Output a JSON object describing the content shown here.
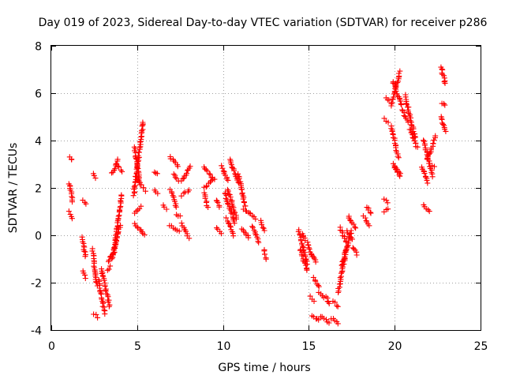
{
  "chart_data": {
    "type": "scatter",
    "title": "Day 019 of 2023, Sidereal Day-to-day VTEC variation (SDTVAR) for receiver p286",
    "xlabel": "GPS time / hours",
    "ylabel": "SDTVAR / TECUs",
    "xlim": [
      0,
      25
    ],
    "ylim": [
      -4,
      8
    ],
    "xticks": [
      "0",
      "5",
      "10",
      "15",
      "20",
      "25"
    ],
    "yticks": [
      "-4",
      "-2",
      "0",
      "2",
      "4",
      "6",
      "8"
    ],
    "grid": true,
    "marker": "plus",
    "color": "#ff0000",
    "tracks": [
      {
        "x": [
          1.1,
          1.2
        ],
        "y": [
          3.3,
          3.2
        ]
      },
      {
        "x": [
          1.05,
          1.25
        ],
        "y": [
          2.2,
          1.4
        ]
      },
      {
        "x": [
          1.05,
          1.2
        ],
        "y": [
          1.0,
          0.7
        ]
      },
      {
        "x": [
          1.85,
          2.05
        ],
        "y": [
          1.5,
          1.3
        ]
      },
      {
        "x": [
          1.8,
          2.0
        ],
        "y": [
          -0.1,
          -0.9
        ]
      },
      {
        "x": [
          1.85,
          2.0
        ],
        "y": [
          -1.5,
          -1.8
        ]
      },
      {
        "x": [
          2.4,
          2.65
        ],
        "y": [
          -0.6,
          -2.1
        ]
      },
      {
        "x": [
          2.45,
          2.6
        ],
        "y": [
          2.6,
          2.4
        ]
      },
      {
        "x": [
          2.45,
          2.7
        ],
        "y": [
          -3.3,
          -3.45
        ]
      },
      {
        "x": [
          2.75,
          3.1
        ],
        "y": [
          -1.9,
          -3.3
        ]
      },
      {
        "x": [
          2.9,
          3.4
        ],
        "y": [
          -1.4,
          -3.0
        ]
      },
      {
        "x": [
          3.25,
          3.45
        ],
        "y": [
          -1.5,
          -1.3
        ]
      },
      {
        "x": [
          3.3,
          3.55
        ],
        "y": [
          -1.1,
          -0.8
        ]
      },
      {
        "x": [
          3.55,
          3.9
        ],
        "y": [
          2.6,
          3.2
        ]
      },
      {
        "x": [
          3.8,
          4.15
        ],
        "y": [
          3.0,
          2.7
        ]
      },
      {
        "x": [
          3.6,
          4.1
        ],
        "y": [
          -0.9,
          1.7
        ]
      },
      {
        "x": [
          3.55,
          4.0
        ],
        "y": [
          -1.0,
          0.4
        ]
      },
      {
        "x": [
          4.8,
          5.35
        ],
        "y": [
          1.7,
          4.8
        ]
      },
      {
        "x": [
          4.85,
          5.15
        ],
        "y": [
          3.7,
          2.2
        ]
      },
      {
        "x": [
          4.9,
          5.45
        ],
        "y": [
          2.5,
          1.9
        ]
      },
      {
        "x": [
          4.85,
          5.2
        ],
        "y": [
          0.9,
          1.2
        ]
      },
      {
        "x": [
          4.85,
          5.4
        ],
        "y": [
          0.5,
          0.0
        ]
      },
      {
        "x": [
          6.0,
          6.2
        ],
        "y": [
          2.7,
          2.6
        ]
      },
      {
        "x": [
          6.0,
          6.2
        ],
        "y": [
          1.9,
          1.8
        ]
      },
      {
        "x": [
          6.5,
          6.7
        ],
        "y": [
          1.3,
          1.1
        ]
      },
      {
        "x": [
          6.9,
          7.4
        ],
        "y": [
          3.3,
          2.9
        ]
      },
      {
        "x": [
          7.1,
          7.4
        ],
        "y": [
          2.6,
          2.3
        ]
      },
      {
        "x": [
          6.95,
          7.3
        ],
        "y": [
          1.9,
          1.2
        ]
      },
      {
        "x": [
          7.6,
          8.1
        ],
        "y": [
          2.3,
          2.9
        ]
      },
      {
        "x": [
          7.6,
          8.05
        ],
        "y": [
          1.7,
          1.9
        ]
      },
      {
        "x": [
          6.9,
          7.45
        ],
        "y": [
          0.4,
          0.2
        ]
      },
      {
        "x": [
          7.3,
          7.5
        ],
        "y": [
          0.9,
          0.8
        ]
      },
      {
        "x": [
          7.6,
          8.0
        ],
        "y": [
          0.5,
          -0.1
        ]
      },
      {
        "x": [
          8.9,
          9.4
        ],
        "y": [
          2.9,
          2.4
        ]
      },
      {
        "x": [
          8.9,
          9.5
        ],
        "y": [
          2.0,
          2.4
        ]
      },
      {
        "x": [
          8.9,
          9.1
        ],
        "y": [
          1.8,
          1.2
        ]
      },
      {
        "x": [
          9.9,
          10.3
        ],
        "y": [
          2.9,
          2.3
        ]
      },
      {
        "x": [
          10.4,
          10.9
        ],
        "y": [
          3.2,
          2.2
        ]
      },
      {
        "x": [
          9.6,
          9.8
        ],
        "y": [
          1.5,
          1.2
        ]
      },
      {
        "x": [
          9.6,
          9.9
        ],
        "y": [
          0.3,
          0.1
        ]
      },
      {
        "x": [
          10.1,
          10.7
        ],
        "y": [
          1.8,
          0.5
        ]
      },
      {
        "x": [
          10.3,
          10.8
        ],
        "y": [
          1.9,
          0.7
        ]
      },
      {
        "x": [
          10.9,
          11.3
        ],
        "y": [
          2.6,
          1.2
        ]
      },
      {
        "x": [
          10.2,
          10.6
        ],
        "y": [
          0.7,
          0.0
        ]
      },
      {
        "x": [
          11.2,
          11.6
        ],
        "y": [
          1.1,
          0.9
        ]
      },
      {
        "x": [
          11.1,
          11.5
        ],
        "y": [
          0.3,
          -0.1
        ]
      },
      {
        "x": [
          11.6,
          11.9
        ],
        "y": [
          0.9,
          0.7
        ]
      },
      {
        "x": [
          11.7,
          12.1
        ],
        "y": [
          0.4,
          -0.3
        ]
      },
      {
        "x": [
          12.2,
          12.4
        ],
        "y": [
          0.6,
          0.2
        ]
      },
      {
        "x": [
          12.4,
          12.5
        ],
        "y": [
          -0.6,
          -1.0
        ]
      },
      {
        "x": [
          14.4,
          14.9
        ],
        "y": [
          0.2,
          -1.2
        ]
      },
      {
        "x": [
          14.5,
          14.9
        ],
        "y": [
          -0.6,
          -1.5
        ]
      },
      {
        "x": [
          14.6,
          14.8
        ],
        "y": [
          0.1,
          -0.2
        ]
      },
      {
        "x": [
          14.9,
          15.2
        ],
        "y": [
          -0.3,
          -0.9
        ]
      },
      {
        "x": [
          15.2,
          15.4
        ],
        "y": [
          -0.8,
          -1.1
        ]
      },
      {
        "x": [
          15.3,
          15.6
        ],
        "y": [
          -1.8,
          -2.2
        ]
      },
      {
        "x": [
          15.6,
          15.9
        ],
        "y": [
          -2.4,
          -2.6
        ]
      },
      {
        "x": [
          15.1,
          15.3
        ],
        "y": [
          -2.6,
          -2.8
        ]
      },
      {
        "x": [
          15.2,
          15.6
        ],
        "y": [
          -3.4,
          -3.6
        ]
      },
      {
        "x": [
          15.7,
          16.2
        ],
        "y": [
          -3.4,
          -3.7
        ]
      },
      {
        "x": [
          16.0,
          16.2
        ],
        "y": [
          -2.6,
          -2.9
        ]
      },
      {
        "x": [
          16.3,
          16.7
        ],
        "y": [
          -3.5,
          -3.7
        ]
      },
      {
        "x": [
          16.4,
          16.7
        ],
        "y": [
          -2.8,
          -3.0
        ]
      },
      {
        "x": [
          16.7,
          17.2
        ],
        "y": [
          -2.4,
          -0.5
        ]
      },
      {
        "x": [
          16.9,
          17.5
        ],
        "y": [
          -1.3,
          0.2
        ]
      },
      {
        "x": [
          17.2,
          17.5
        ],
        "y": [
          0.2,
          -0.2
        ]
      },
      {
        "x": [
          16.8,
          17.2
        ],
        "y": [
          0.3,
          -0.3
        ]
      },
      {
        "x": [
          17.3,
          17.7
        ],
        "y": [
          0.8,
          0.3
        ]
      },
      {
        "x": [
          17.6,
          17.8
        ],
        "y": [
          -0.5,
          -0.8
        ]
      },
      {
        "x": [
          18.2,
          18.5
        ],
        "y": [
          0.8,
          0.4
        ]
      },
      {
        "x": [
          18.4,
          18.6
        ],
        "y": [
          1.2,
          0.9
        ]
      },
      {
        "x": [
          19.4,
          19.6
        ],
        "y": [
          1.5,
          1.4
        ]
      },
      {
        "x": [
          19.4,
          19.6
        ],
        "y": [
          1.0,
          1.1
        ]
      },
      {
        "x": [
          19.4,
          19.6
        ],
        "y": [
          4.9,
          4.8
        ]
      },
      {
        "x": [
          19.5,
          19.7
        ],
        "y": [
          5.8,
          5.7
        ]
      },
      {
        "x": [
          19.8,
          20.3
        ],
        "y": [
          5.5,
          6.9
        ]
      },
      {
        "x": [
          19.8,
          20.2
        ],
        "y": [
          4.6,
          3.3
        ]
      },
      {
        "x": [
          19.9,
          20.4
        ],
        "y": [
          6.5,
          5.5
        ]
      },
      {
        "x": [
          19.9,
          20.3
        ],
        "y": [
          3.0,
          2.5
        ]
      },
      {
        "x": [
          20.0,
          20.3
        ],
        "y": [
          2.9,
          2.6
        ]
      },
      {
        "x": [
          20.6,
          21.2
        ],
        "y": [
          5.9,
          4.1
        ]
      },
      {
        "x": [
          20.4,
          20.8
        ],
        "y": [
          5.3,
          4.8
        ]
      },
      {
        "x": [
          20.9,
          21.3
        ],
        "y": [
          4.5,
          3.7
        ]
      },
      {
        "x": [
          21.7,
          22.2
        ],
        "y": [
          4.0,
          2.5
        ]
      },
      {
        "x": [
          21.6,
          21.9
        ],
        "y": [
          2.9,
          2.2
        ]
      },
      {
        "x": [
          21.9,
          22.4
        ],
        "y": [
          3.2,
          4.2
        ]
      },
      {
        "x": [
          21.7,
          22.0
        ],
        "y": [
          1.3,
          1.0
        ]
      },
      {
        "x": [
          22.0,
          22.3
        ],
        "y": [
          3.0,
          2.9
        ]
      },
      {
        "x": [
          22.7,
          22.95
        ],
        "y": [
          7.1,
          6.4
        ]
      },
      {
        "x": [
          22.75,
          22.95
        ],
        "y": [
          5.6,
          5.5
        ]
      },
      {
        "x": [
          22.7,
          22.95
        ],
        "y": [
          5.0,
          4.4
        ]
      }
    ]
  }
}
